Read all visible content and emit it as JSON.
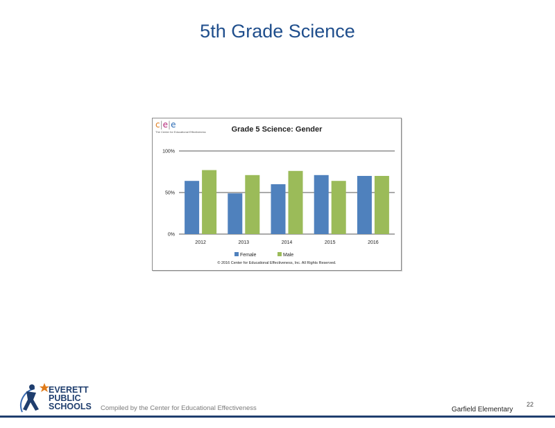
{
  "slide": {
    "title": "5th Grade Science",
    "page_number": "22",
    "footer_compiled": "Compiled by the Center for Educational Effectiveness",
    "footer_school": "Garfield Elementary"
  },
  "logo_cee": {
    "letters": "c|e|e",
    "subtitle": "The Center for Educational Effectiveness"
  },
  "logo_eps": {
    "line1": "EVERETT",
    "line2": "PUBLIC",
    "line3": "SCHOOLS",
    "icon": "person-star-icon"
  },
  "colors": {
    "female": "#4f81bd",
    "male": "#9bbb59",
    "title": "#1f4e8c",
    "footer_bar": "#1f3e6e"
  },
  "chart_data": {
    "type": "bar",
    "title": "Grade 5 Science: Gender",
    "categories": [
      "2012",
      "2013",
      "2014",
      "2015",
      "2016"
    ],
    "series": [
      {
        "name": "Female",
        "values": [
          64,
          49,
          60,
          71,
          70
        ]
      },
      {
        "name": "Male",
        "values": [
          77,
          71,
          76,
          64,
          70
        ]
      }
    ],
    "yticks": [
      "0%",
      "50%",
      "100%"
    ],
    "ylim": [
      0,
      100
    ],
    "grid": true,
    "legend": "bottom",
    "copyright": "© 2016 Center for Educational Effectiveness, Inc. All Rights Reserved."
  }
}
